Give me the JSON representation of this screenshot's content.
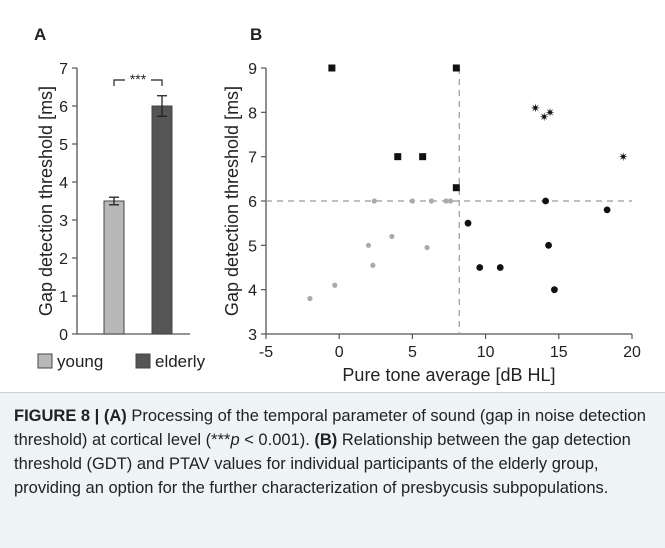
{
  "figure": {
    "panels": [
      {
        "label": "A",
        "ylabel": "Gap detection threshold [ms]",
        "significance": "***",
        "legend": [
          {
            "label": "young",
            "color": "#b8b8b8"
          },
          {
            "label": "elderly",
            "color": "#555555"
          }
        ]
      },
      {
        "label": "B",
        "xlabel": "Pure tone average [dB HL]",
        "ylabel": "Gap detection threshold [ms]"
      }
    ]
  },
  "chart_data": [
    {
      "type": "bar",
      "title": "A",
      "categories": [
        "young",
        "elderly"
      ],
      "values": [
        3.5,
        6.0
      ],
      "errors": [
        0.1,
        0.27
      ],
      "colors": [
        "#b8b8b8",
        "#555555"
      ],
      "ylabel": "Gap detection threshold [ms]",
      "xlabel": "",
      "ylim": [
        0,
        7
      ],
      "yticks": [
        0,
        1,
        2,
        3,
        4,
        5,
        6,
        7
      ],
      "significance": "***",
      "legend_position": "bottom",
      "grid": false
    },
    {
      "type": "scatter",
      "title": "B",
      "xlabel": "Pure tone average [dB HL]",
      "ylabel": "Gap detection threshold [ms]",
      "xlim": [
        -5,
        20
      ],
      "ylim": [
        3,
        9
      ],
      "xticks": [
        -5,
        0,
        5,
        10,
        15,
        20
      ],
      "yticks": [
        3,
        4,
        5,
        6,
        7,
        8,
        9
      ],
      "reference_lines": {
        "x": 8.2,
        "y": 6
      },
      "grid": false,
      "series": [
        {
          "marker": "circle",
          "color": "#aaaaaa",
          "size": "small",
          "points": [
            [
              -2,
              3.8
            ],
            [
              -0.3,
              4.1
            ],
            [
              2,
              5.0
            ],
            [
              2.3,
              4.55
            ],
            [
              2.4,
              6.0
            ],
            [
              3.6,
              5.2
            ],
            [
              5,
              6.0
            ],
            [
              6,
              4.95
            ],
            [
              6.3,
              6.0
            ],
            [
              7.3,
              6.0
            ],
            [
              7.6,
              6.0
            ]
          ]
        },
        {
          "marker": "square",
          "color": "#111111",
          "size": "medium",
          "points": [
            [
              -0.5,
              9.0
            ],
            [
              4,
              7.0
            ],
            [
              5.7,
              7.0
            ],
            [
              8.0,
              9.0
            ],
            [
              8.0,
              6.3
            ]
          ]
        },
        {
          "marker": "circle",
          "color": "#111111",
          "size": "medium",
          "points": [
            [
              8.8,
              5.5
            ],
            [
              9.6,
              4.5
            ],
            [
              11,
              4.5
            ],
            [
              14.1,
              6.0
            ],
            [
              14.3,
              5.0
            ],
            [
              14.7,
              4.0
            ],
            [
              18.3,
              5.8
            ]
          ]
        },
        {
          "marker": "star",
          "color": "#111111",
          "size": "small",
          "points": [
            [
              13.4,
              8.1
            ],
            [
              14.0,
              7.9
            ],
            [
              14.4,
              8.0
            ],
            [
              19.4,
              7.0
            ]
          ]
        }
      ]
    }
  ],
  "caption": {
    "label": "FIGURE 8 | ",
    "part_a_label": "(A)",
    "part_a_text": " Processing of the temporal parameter of sound (gap in noise detection threshold) at cortical level (",
    "p_stars": "***",
    "p_symbol": "p",
    "p_rest": " < 0.001). ",
    "part_b_label": "(B)",
    "part_b_text": " Relationship between the gap detection threshold (GDT) and PTAV values for individual participants of the elderly group, providing an option for the further characterization of presbycusis subpopulations."
  }
}
